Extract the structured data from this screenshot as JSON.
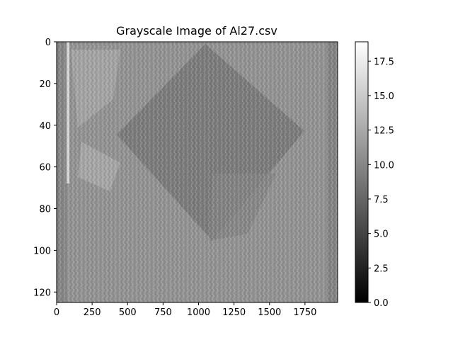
{
  "chart_data": {
    "type": "heatmap",
    "title": "Grayscale Image of Al27.csv",
    "xlabel": "",
    "ylabel": "",
    "xlim": [
      0,
      1980
    ],
    "ylim": [
      125,
      0
    ],
    "x_ticks": [
      0,
      250,
      500,
      750,
      1000,
      1250,
      1500,
      1750
    ],
    "y_ticks": [
      0,
      20,
      40,
      60,
      80,
      100,
      120
    ],
    "colormap": "gray",
    "colorbar": {
      "min": 0.0,
      "max": 18.9,
      "ticks": [
        "0.0",
        "2.5",
        "5.0",
        "7.5",
        "10.0",
        "12.5",
        "15.0",
        "17.5"
      ],
      "tick_values": [
        0.0,
        2.5,
        5.0,
        7.5,
        10.0,
        12.5,
        15.0,
        17.5
      ]
    },
    "image_description_values": {
      "background_level": 9.5,
      "diamond_region_level": 7.0,
      "edge_strip_level": 7.5,
      "bright_left_level": 13.5
    }
  }
}
